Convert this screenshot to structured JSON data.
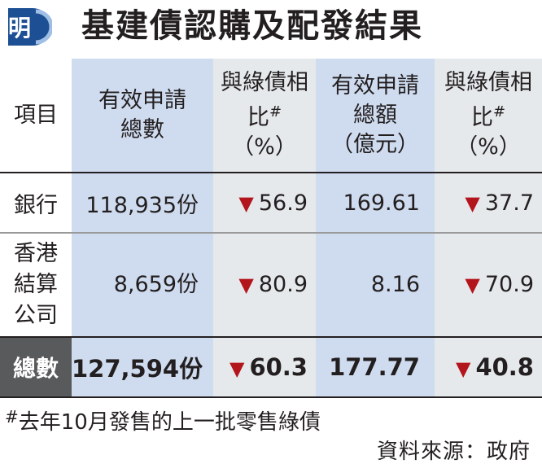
{
  "header": {
    "logo_char": "明",
    "title": "基建債認購及配發結果"
  },
  "columns": {
    "item": "項目",
    "valid_count": "有效申請總數",
    "count_change": "與綠債相比",
    "count_unit": "（%）",
    "valid_amount": "有效申請總額",
    "amount_unit_label": "（億元）",
    "amount_change": "與綠債相比",
    "amount_change_unit": "（%）",
    "hash": "#"
  },
  "rows": [
    {
      "item": "銀行",
      "count": "118,935份",
      "count_change": "56.9",
      "amount": "169.61",
      "amount_change": "37.7"
    },
    {
      "item_lines": [
        "香港",
        "結算",
        "公司"
      ],
      "count": "8,659份",
      "count_change": "80.9",
      "amount": "8.16",
      "amount_change": "70.9"
    },
    {
      "item": "總數",
      "count": "127,594份",
      "count_change": "60.3",
      "amount": "177.77",
      "amount_change": "40.8"
    }
  ],
  "down_symbol": "▼",
  "colors": {
    "title": "#231f20",
    "down": "#b3151c",
    "blue_column": "#cfdcef",
    "grey_column": "#e6e9ec",
    "total_label_bg": "#595a5c"
  },
  "footnote": {
    "hash": "#",
    "text": "去年10月發售的上一批零售綠債"
  },
  "source": "資料來源：政府"
}
